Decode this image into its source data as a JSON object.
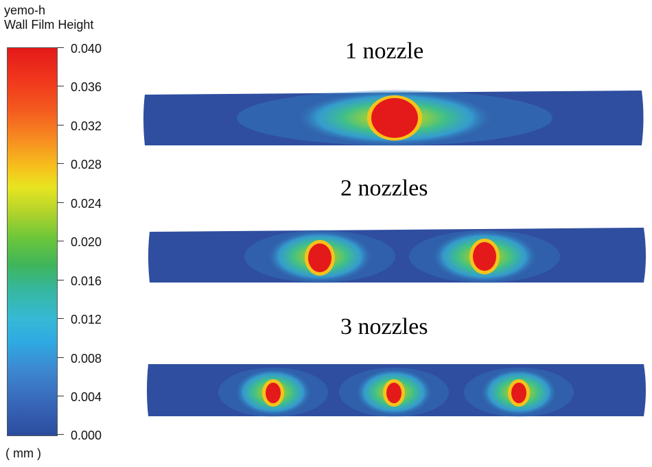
{
  "legend": {
    "variable": "yemo-h",
    "name": "Wall Film Height",
    "unit": "( mm )",
    "ticks": [
      "0.040",
      "0.036",
      "0.032",
      "0.028",
      "0.024",
      "0.020",
      "0.016",
      "0.012",
      "0.008",
      "0.004",
      "0.000"
    ],
    "range": [
      0.0,
      0.04
    ]
  },
  "cases": [
    {
      "label": "1 nozzle",
      "nozzles": 1
    },
    {
      "label": "2 nozzles",
      "nozzles": 2
    },
    {
      "label": "3 nozzles",
      "nozzles": 3
    }
  ],
  "colors": {
    "background": "#2f4ea0",
    "high": "#e41a1a",
    "mid": "#f6c21c",
    "low_mid": "#5cc445",
    "low": "#36b9d6"
  }
}
